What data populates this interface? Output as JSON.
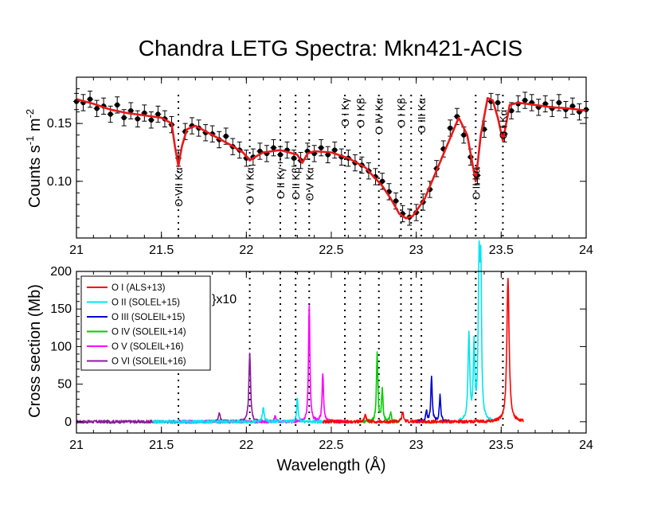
{
  "chart_data": {
    "title": "Chandra LETG Spectra: Mkn421-ACIS",
    "top": {
      "type": "scatter",
      "ylabel_main": "Counts  s",
      "ylabel_exp1": "-1",
      "ylabel_unit": " m",
      "ylabel_exp2": "-2",
      "xlim": [
        21,
        24
      ],
      "ylim": [
        0.051,
        0.19
      ],
      "xticks": [
        "21",
        "21.5",
        "22",
        "22.5",
        "23",
        "23.5",
        "24"
      ],
      "xtick_values": [
        21,
        21.5,
        22,
        22.5,
        23,
        23.5,
        24
      ],
      "yticks": [
        "0.10",
        "0.15"
      ],
      "ytick_values": [
        0.1,
        0.15
      ],
      "line_labels": [
        {
          "x": 21.6,
          "text": "O VII Kα",
          "side": "low",
          "y": 0.112
        },
        {
          "x": 22.02,
          "text": "O VI Kα",
          "side": "low",
          "y": 0.112
        },
        {
          "x": 22.2,
          "text": "O II Kγ",
          "side": "low",
          "y": 0.112
        },
        {
          "x": 22.29,
          "text": "O II Kβ",
          "side": "low",
          "y": 0.112
        },
        {
          "x": 22.37,
          "text": "O V Kα",
          "side": "low",
          "y": 0.112
        },
        {
          "x": 22.58,
          "text": "O I Kγ",
          "side": "high",
          "y": 0.172
        },
        {
          "x": 22.67,
          "text": "O I Kβ",
          "side": "high",
          "y": 0.172
        },
        {
          "x": 22.78,
          "text": "O IV Kα",
          "side": "high",
          "y": 0.172
        },
        {
          "x": 22.91,
          "text": "O I Kβ",
          "side": "high",
          "y": 0.172
        },
        {
          "x": 23.03,
          "text": "O III Kα",
          "side": "high",
          "y": 0.172
        },
        {
          "x": 23.35,
          "text": "O II Kα",
          "side": "low",
          "y": 0.112
        },
        {
          "x": 23.51,
          "text": "O I Kα",
          "side": "low",
          "y": 0.162
        }
      ],
      "model_x": [
        21.0,
        21.1,
        21.2,
        21.3,
        21.4,
        21.5,
        21.56,
        21.58,
        21.6,
        21.62,
        21.65,
        21.7,
        21.8,
        21.9,
        21.98,
        22.02,
        22.05,
        22.1,
        22.2,
        22.3,
        22.33,
        22.36,
        22.4,
        22.5,
        22.6,
        22.65,
        22.7,
        22.75,
        22.8,
        22.85,
        22.9,
        22.94,
        22.98,
        23.05,
        23.15,
        23.25,
        23.3,
        23.35,
        23.38,
        23.42,
        23.45,
        23.48,
        23.51,
        23.55,
        23.6,
        23.7,
        23.8,
        23.9,
        24.0
      ],
      "model_y": [
        0.171,
        0.167,
        0.162,
        0.159,
        0.157,
        0.155,
        0.15,
        0.13,
        0.113,
        0.13,
        0.145,
        0.148,
        0.14,
        0.132,
        0.125,
        0.118,
        0.121,
        0.125,
        0.127,
        0.123,
        0.116,
        0.124,
        0.126,
        0.125,
        0.12,
        0.116,
        0.112,
        0.104,
        0.096,
        0.085,
        0.072,
        0.068,
        0.07,
        0.085,
        0.12,
        0.155,
        0.14,
        0.1,
        0.14,
        0.172,
        0.17,
        0.155,
        0.135,
        0.166,
        0.168,
        0.166,
        0.164,
        0.163,
        0.161
      ],
      "points_x": [
        21.0,
        21.04,
        21.08,
        21.12,
        21.16,
        21.2,
        21.24,
        21.28,
        21.32,
        21.36,
        21.4,
        21.44,
        21.48,
        21.52,
        21.56,
        21.6,
        21.64,
        21.68,
        21.72,
        21.76,
        21.8,
        21.84,
        21.88,
        21.92,
        21.96,
        22.0,
        22.04,
        22.08,
        22.12,
        22.16,
        22.2,
        22.24,
        22.28,
        22.32,
        22.36,
        22.4,
        22.44,
        22.48,
        22.52,
        22.56,
        22.6,
        22.64,
        22.68,
        22.72,
        22.76,
        22.8,
        22.84,
        22.88,
        22.92,
        22.96,
        23.0,
        23.04,
        23.08,
        23.12,
        23.16,
        23.2,
        23.24,
        23.28,
        23.32,
        23.36,
        23.4,
        23.44,
        23.48,
        23.52,
        23.56,
        23.6,
        23.64,
        23.68,
        23.72,
        23.76,
        23.8,
        23.84,
        23.88,
        23.92,
        23.96,
        24.0
      ],
      "points_y": [
        0.169,
        0.168,
        0.171,
        0.163,
        0.165,
        0.158,
        0.166,
        0.155,
        0.161,
        0.154,
        0.159,
        0.153,
        0.158,
        0.154,
        0.149,
        0.12,
        0.143,
        0.148,
        0.146,
        0.142,
        0.141,
        0.136,
        0.139,
        0.13,
        0.127,
        0.12,
        0.121,
        0.126,
        0.124,
        0.129,
        0.123,
        0.127,
        0.12,
        0.118,
        0.126,
        0.124,
        0.129,
        0.123,
        0.127,
        0.121,
        0.12,
        0.116,
        0.114,
        0.109,
        0.104,
        0.1,
        0.091,
        0.083,
        0.072,
        0.069,
        0.073,
        0.082,
        0.093,
        0.111,
        0.128,
        0.146,
        0.156,
        0.14,
        0.121,
        0.105,
        0.145,
        0.169,
        0.168,
        0.141,
        0.161,
        0.167,
        0.17,
        0.168,
        0.164,
        0.167,
        0.163,
        0.168,
        0.162,
        0.165,
        0.16,
        0.162
      ]
    },
    "bottom": {
      "type": "line",
      "ylabel": "Cross section (Mb)",
      "xlabel": "Wavelength (Å)",
      "xlim": [
        21,
        24
      ],
      "ylim": [
        -15,
        200
      ],
      "xticks": [
        "21",
        "21.5",
        "22",
        "22.5",
        "23",
        "23.5",
        "24"
      ],
      "xtick_values": [
        21,
        21.5,
        22,
        22.5,
        23,
        23.5,
        24
      ],
      "yticks": [
        "0",
        "50",
        "100",
        "150",
        "200"
      ],
      "ytick_values": [
        0,
        50,
        100,
        150,
        200
      ],
      "annotation": "}x10",
      "legend": [
        {
          "label": "O I (ALS+13)",
          "color": "#ff0000"
        },
        {
          "label": "O II (SOLEL+15)",
          "color": "#00e5ee"
        },
        {
          "label": "O III (SOLEIL+15)",
          "color": "#0000cd"
        },
        {
          "label": "O IV (SOLEIL+14)",
          "color": "#00cc00"
        },
        {
          "label": "O V (SOLEIL+16)",
          "color": "#ff00ff"
        },
        {
          "label": "O VI (SOLEIL+16)",
          "color": "#8b1a9b"
        }
      ],
      "series": [
        {
          "name": "O VI",
          "color": "#8b1a9b",
          "range": [
            21.0,
            22.1
          ],
          "peaks": [
            [
              21.84,
              12,
              0.006
            ],
            [
              22.02,
              92,
              0.006
            ]
          ]
        },
        {
          "name": "O V",
          "color": "#ff00ff",
          "range": [
            21.6,
            22.6
          ],
          "peaks": [
            [
              22.17,
              8,
              0.005
            ],
            [
              22.37,
              155,
              0.005
            ],
            [
              22.45,
              65,
              0.005
            ]
          ]
        },
        {
          "name": "O II",
          "color": "#00e5ee",
          "range": [
            21.45,
            22.5
          ],
          "peaks": [
            [
              22.1,
              18,
              0.006
            ],
            [
              22.3,
              30,
              0.005
            ]
          ]
        },
        {
          "name": "O IV",
          "color": "#00cc00",
          "range": [
            22.65,
            22.9
          ],
          "peaks": [
            [
              22.77,
              90,
              0.005
            ],
            [
              22.8,
              42,
              0.005
            ],
            [
              22.85,
              12,
              0.005
            ]
          ]
        },
        {
          "name": "O III",
          "color": "#0000cd",
          "range": [
            23.0,
            23.2
          ],
          "peaks": [
            [
              23.06,
              15,
              0.005
            ],
            [
              23.09,
              60,
              0.005
            ],
            [
              23.14,
              35,
              0.005
            ]
          ]
        },
        {
          "name": "O II",
          "color": "#00e5ee",
          "range": [
            23.25,
            23.45
          ],
          "peaks": [
            [
              23.31,
              115,
              0.006
            ],
            [
              23.34,
              100,
              0.005
            ],
            [
              23.37,
              200,
              0.006
            ],
            [
              23.38,
              180,
              0.005
            ]
          ]
        },
        {
          "name": "O I",
          "color": "#ff0000",
          "range": [
            22.45,
            23.63
          ],
          "peaks": [
            [
              22.7,
              10,
              0.006
            ],
            [
              22.92,
              12,
              0.006
            ],
            [
              23.54,
              190,
              0.008
            ]
          ]
        }
      ]
    },
    "dotted_lines_x": [
      21.6,
      22.02,
      22.2,
      22.29,
      22.37,
      22.58,
      22.67,
      22.78,
      22.91,
      22.97,
      23.03,
      23.35,
      23.51
    ]
  }
}
